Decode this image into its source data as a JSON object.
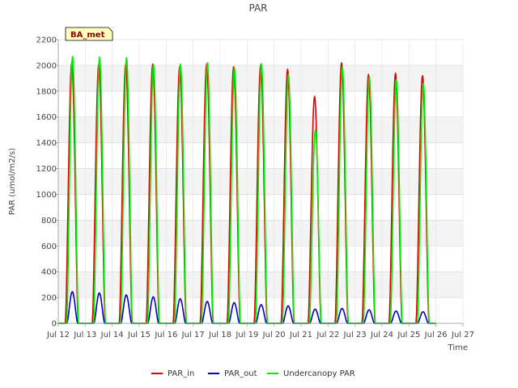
{
  "chart_data": {
    "type": "line",
    "title": "PAR",
    "xlabel": "Time",
    "ylabel": "PAR (umol/m2/s)",
    "site_badge": "BA_met",
    "ylim": [
      0,
      2200
    ],
    "yticks": [
      0,
      200,
      400,
      600,
      800,
      1000,
      1200,
      1400,
      1600,
      1800,
      2000,
      2200
    ],
    "xlim": [
      12,
      27
    ],
    "xticks": [
      12,
      13,
      14,
      15,
      16,
      17,
      18,
      19,
      20,
      21,
      22,
      23,
      24,
      25,
      26,
      27
    ],
    "xtick_labels": [
      "Jul 12",
      "Jul 13",
      "Jul 14",
      "Jul 15",
      "Jul 16",
      "Jul 17",
      "Jul 18",
      "Jul 19",
      "Jul 20",
      "Jul 21",
      "Jul 22",
      "Jul 23",
      "Jul 24",
      "Jul 25",
      "Jul 26",
      "Jul 27"
    ],
    "legend_position": "bottom-center",
    "days": [
      12.5,
      13.5,
      14.5,
      15.5,
      16.5,
      17.5,
      18.5,
      19.5,
      20.5,
      21.5,
      22.5,
      23.5,
      24.5,
      25.5
    ],
    "series": [
      {
        "name": "PAR_in",
        "color": "#dd0000",
        "daily_peaks": [
          2020,
          2010,
          2010,
          2010,
          1990,
          2010,
          1990,
          2000,
          1970,
          1760,
          2020,
          1930,
          1940,
          1920
        ]
      },
      {
        "name": "PAR_out",
        "color": "#0000cc",
        "daily_peaks": [
          245,
          235,
          220,
          205,
          190,
          170,
          160,
          145,
          135,
          110,
          115,
          105,
          95,
          90
        ]
      },
      {
        "name": "Undercanopy PAR",
        "color": "#00ee00",
        "daily_peaks": [
          2070,
          2065,
          2060,
          2005,
          2010,
          2020,
          1980,
          2015,
          1930,
          1500,
          1990,
          1910,
          1890,
          1860
        ]
      }
    ]
  }
}
